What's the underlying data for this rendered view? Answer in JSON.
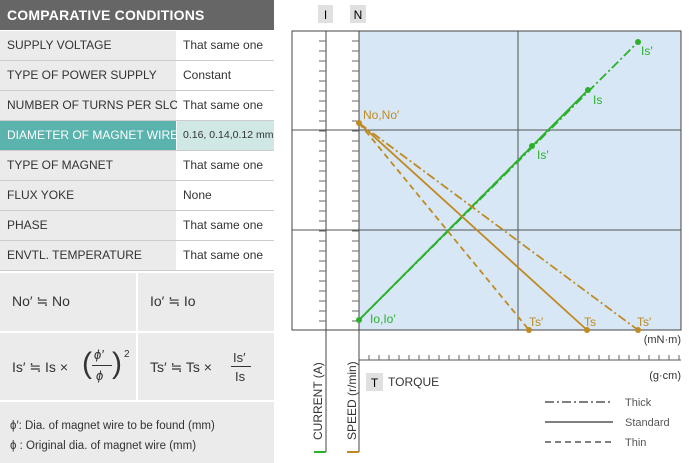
{
  "conditions": {
    "title": "COMPARATIVE CONDITIONS",
    "rows": [
      {
        "label": "SUPPLY VOLTAGE",
        "value": "That same one"
      },
      {
        "label": "TYPE OF POWER SUPPLY",
        "value": "Constant"
      },
      {
        "label": "NUMBER OF TURNS PER SLOT",
        "value": "That same one"
      },
      {
        "label": "DIAMETER OF MAGNET WIRE",
        "value": "0.16, 0.14,0.12 mm"
      },
      {
        "label": "TYPE OF MAGNET",
        "value": "That same one"
      },
      {
        "label": "FLUX YOKE",
        "value": "None"
      },
      {
        "label": "PHASE",
        "value": "That same one"
      },
      {
        "label": "ENVTL. TEMPERATURE",
        "value": "That same one"
      }
    ]
  },
  "formulas": {
    "no": "No′ ≒ No",
    "io": "Io′ ≒ Io",
    "is_lhs": "Is′ ≒ Is ×",
    "phi_num": "ϕ′",
    "phi_den": "ϕ",
    "exponent": "2",
    "ts_lhs": "Ts′ ≒ Ts ×",
    "is_num": "Is′",
    "is_den": "Is"
  },
  "notes": {
    "phi_prime": "ϕ′: Dia. of magnet wire to be found (mm)",
    "phi": "ϕ : Original dia. of magnet wire (mm)"
  },
  "chart": {
    "badge_i": "I",
    "badge_n": "N",
    "badge_t": "T",
    "torque_label": "TORQUE",
    "current_axis": "CURRENT (A)",
    "speed_axis": "SPEED (r/min)",
    "unit_mnm": "(mN·m)",
    "unit_gcm": "(g·cm)",
    "colors": {
      "current": "#2bb02b",
      "speed": "#c08a22",
      "bg": "#d7e7f5"
    },
    "labels": {
      "no": "No,No′",
      "io": "Io,Io′",
      "is_thick": "Is′",
      "is_std": "Is",
      "is_thin": "Is′",
      "ts_thin": "Ts′",
      "ts_std": "Ts",
      "ts_thick": "Ts′"
    },
    "legend": {
      "thick": "Thick",
      "standard": "Standard",
      "thin": "Thin"
    }
  }
}
